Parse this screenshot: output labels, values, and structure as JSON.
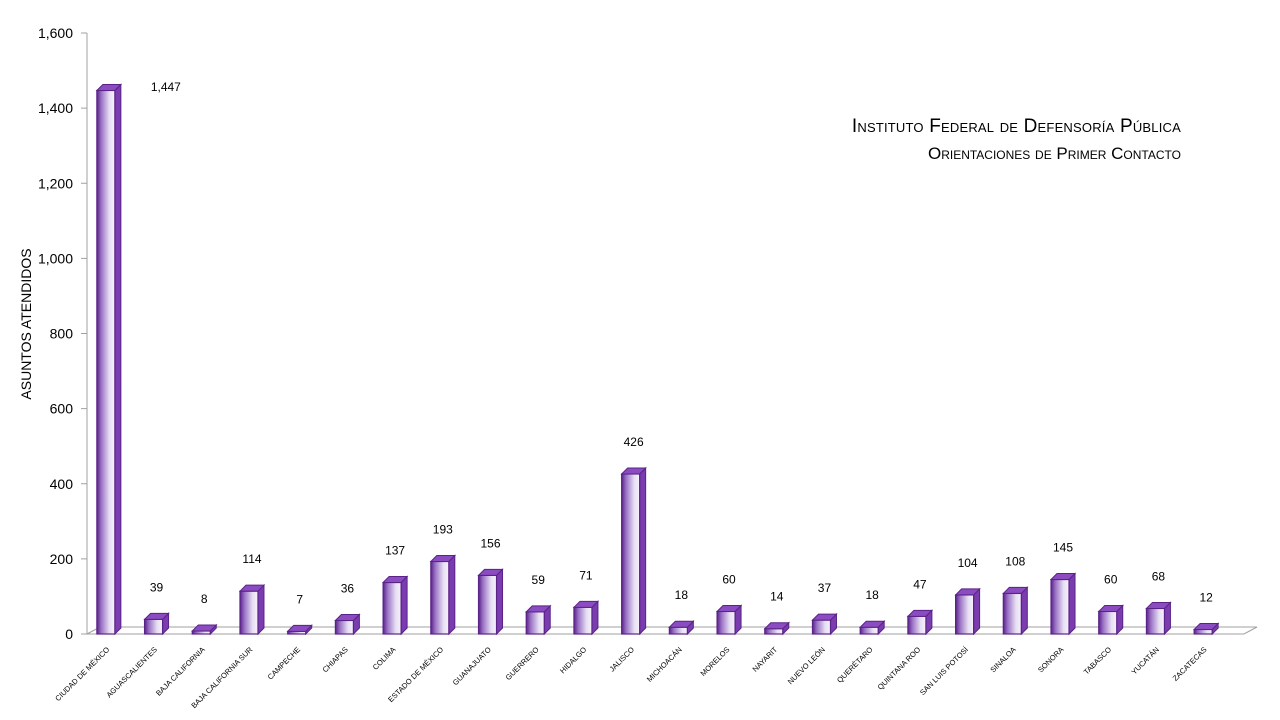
{
  "chart_data": {
    "type": "bar",
    "title": "Instituto Federal de Defensoría Pública",
    "subtitle": "Orientaciones de Primer Contacto",
    "ylabel": "ASUNTOS ATENDIDOS",
    "xlabel": "",
    "ylim": [
      0,
      1600
    ],
    "yticks": [
      "0",
      "200",
      "400",
      "600",
      "800",
      "1,000",
      "1,200",
      "1,400",
      "1,600"
    ],
    "ytick_values": [
      0,
      200,
      400,
      600,
      800,
      1000,
      1200,
      1400,
      1600
    ],
    "categories": [
      "CIUDAD DE MÉXICO",
      "AGUASCALIENTES",
      "BAJA CALIFORNIA",
      "BAJA CALIFORNIA SUR",
      "CAMPECHE",
      "CHIAPAS",
      "COLIMA",
      "ESTADO DE MÉXICO",
      "GUANAJUATO",
      "GUERRERO",
      "HIDALGO",
      "JALISCO",
      "MICHOACÁN",
      "MORELOS",
      "NAYARIT",
      "NUEVO LEÓN",
      "QUERÉTARO",
      "QUINTANA ROO",
      "SAN LUIS POTOSÍ",
      "SINALOA",
      "SONORA",
      "TABASCO",
      "YUCATÁN",
      "ZACATECAS"
    ],
    "values": [
      1447,
      39,
      8,
      114,
      7,
      36,
      137,
      193,
      156,
      59,
      71,
      426,
      18,
      60,
      14,
      37,
      18,
      47,
      104,
      108,
      145,
      60,
      68,
      12
    ],
    "value_labels": [
      "1,447",
      "39",
      "8",
      "114",
      "7",
      "36",
      "137",
      "193",
      "156",
      "59",
      "71",
      "426",
      "18",
      "60",
      "14",
      "37",
      "18",
      "47",
      "104",
      "108",
      "145",
      "60",
      "68",
      "12"
    ],
    "grid": false,
    "legend": "none",
    "colors": {
      "bar_dark": "#6a2c9a",
      "bar_light": "#f0eaf8",
      "bar_top": "#8a4cc0",
      "bar_side": "#7a3cae",
      "axis": "#a0a0a0"
    }
  }
}
